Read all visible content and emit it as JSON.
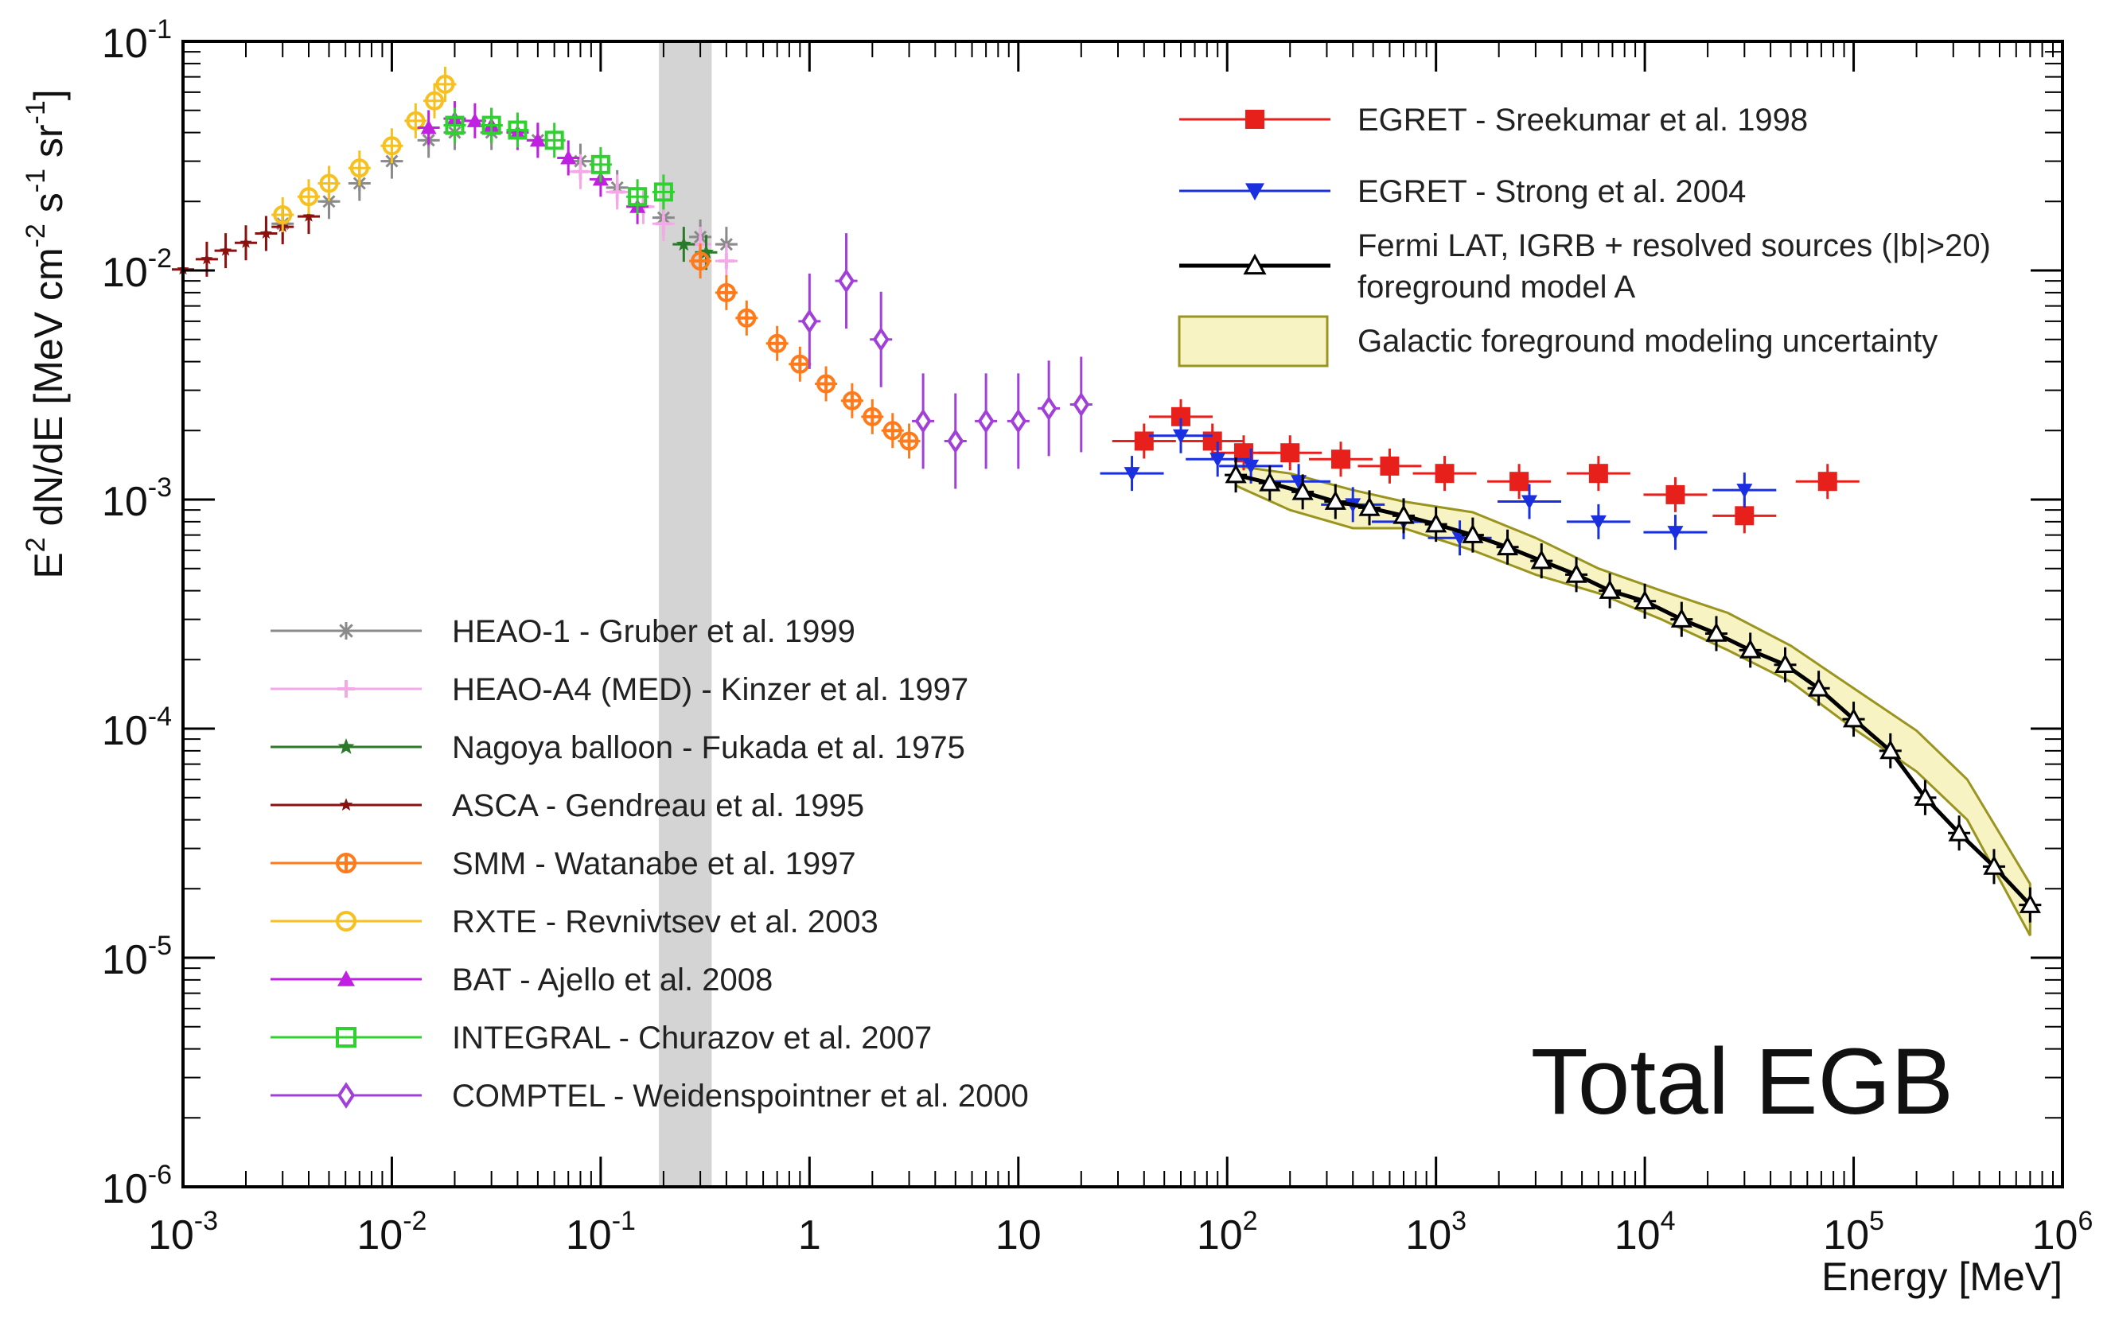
{
  "chart_data": {
    "type": "scatter",
    "title": "",
    "annotation": "Total EGB",
    "xlabel": "Energy [MeV]",
    "ylabel": "E2 dN/dE [MeV cm-2 s-1 sr-1]",
    "xscale": "log",
    "yscale": "log",
    "xlim": [
      0.001,
      1000000
    ],
    "ylim": [
      1e-06,
      0.1
    ],
    "x_tick_labels": [
      "10-3",
      "10-2",
      "10-1",
      "1",
      "10",
      "102",
      "103",
      "104",
      "105",
      "106"
    ],
    "y_tick_labels": [
      "10-6",
      "10-5",
      "10-4",
      "10-3",
      "10-2",
      "10-1"
    ],
    "shaded_band_x": [
      0.19,
      0.34
    ],
    "legend_top_right": [
      "EGRET - Sreekumar et al. 1998",
      "EGRET - Strong et al. 2004",
      "Fermi LAT, IGRB + resolved sources (|b|>20)",
      "foreground model A",
      "Galactic foreground modeling uncertainty"
    ],
    "legend_bottom_left": [
      "HEAO-1 - Gruber et al. 1999",
      "HEAO-A4 (MED) - Kinzer et al. 1997",
      "Nagoya balloon - Fukada et al. 1975",
      "ASCA - Gendreau et al. 1995",
      "SMM - Watanabe et al. 1997",
      "RXTE - Revnivtsev et al. 2003",
      "BAT - Ajello et al. 2008",
      "INTEGRAL - Churazov et al. 2007",
      "COMPTEL - Weidenspointner et al. 2000"
    ],
    "series": [
      {
        "name": "EGRET - Sreekumar et al. 1998",
        "color": "#e8201c",
        "marker": "square",
        "x": [
          40,
          60,
          85,
          120,
          200,
          350,
          600,
          1100,
          2500,
          6000,
          14000,
          30000,
          75000
        ],
        "y": [
          0.0018,
          0.0023,
          0.0018,
          0.0016,
          0.0016,
          0.0015,
          0.0014,
          0.0013,
          0.0012,
          0.0013,
          0.00105,
          0.00085,
          0.0012
        ]
      },
      {
        "name": "EGRET - Strong et al. 2004",
        "color": "#1a2fe0",
        "marker": "triangle-down",
        "x": [
          35,
          60,
          90,
          130,
          220,
          400,
          700,
          1300,
          2800,
          6000,
          14000,
          30000
        ],
        "y": [
          0.0013,
          0.0019,
          0.0015,
          0.0014,
          0.0012,
          0.00095,
          0.0008,
          0.00068,
          0.00098,
          0.0008,
          0.00072,
          0.0011
        ]
      },
      {
        "name": "Fermi LAT, IGRB + resolved sources (|b|>20)",
        "color": "#000000",
        "marker": "triangle-open",
        "x": [
          110,
          160,
          230,
          330,
          480,
          700,
          1000,
          1500,
          2200,
          3200,
          4700,
          6800,
          10000,
          15000,
          22000,
          32000,
          47000,
          68000,
          100000,
          150000,
          220000,
          320000,
          470000,
          700000
        ],
        "y": [
          0.00128,
          0.00118,
          0.00108,
          0.00098,
          0.00092,
          0.00085,
          0.00078,
          0.0007,
          0.00062,
          0.00054,
          0.00047,
          0.0004,
          0.00036,
          0.0003,
          0.00026,
          0.00022,
          0.00019,
          0.00015,
          0.00011,
          8e-05,
          5e-05,
          3.5e-05,
          2.5e-05,
          1.7e-05
        ]
      },
      {
        "name": "HEAO-1 - Gruber et al. 1999",
        "color": "#8a8a8a",
        "marker": "asterisk",
        "x": [
          0.003,
          0.005,
          0.007,
          0.01,
          0.015,
          0.02,
          0.03,
          0.05,
          0.08,
          0.12,
          0.2,
          0.3,
          0.4
        ],
        "y": [
          0.016,
          0.02,
          0.024,
          0.03,
          0.037,
          0.04,
          0.04,
          0.037,
          0.03,
          0.023,
          0.017,
          0.014,
          0.013
        ]
      },
      {
        "name": "HEAO-A4 (MED) - Kinzer et al. 1997",
        "color": "#f5a8e8",
        "marker": "plus",
        "x": [
          0.08,
          0.12,
          0.16,
          0.2,
          0.3,
          0.4
        ],
        "y": [
          0.027,
          0.022,
          0.019,
          0.016,
          0.013,
          0.011
        ]
      },
      {
        "name": "Nagoya balloon - Fukada et al. 1975",
        "color": "#2a7a2a",
        "marker": "star",
        "x": [
          0.25,
          0.32
        ],
        "y": [
          0.013,
          0.012
        ]
      },
      {
        "name": "ASCA - Gendreau et al. 1995",
        "color": "#8b1010",
        "marker": "star-small",
        "x": [
          0.001,
          0.0013,
          0.0016,
          0.002,
          0.0025,
          0.003,
          0.004
        ],
        "y": [
          0.0101,
          0.0112,
          0.0122,
          0.0132,
          0.0145,
          0.0155,
          0.0172
        ]
      },
      {
        "name": "SMM - Watanabe et al. 1997",
        "color": "#ff7a1a",
        "marker": "crossed-circle",
        "x": [
          0.3,
          0.4,
          0.5,
          0.7,
          0.9,
          1.2,
          1.6,
          2.0,
          2.5,
          3.0
        ],
        "y": [
          0.011,
          0.008,
          0.0062,
          0.0048,
          0.0039,
          0.0032,
          0.0027,
          0.0023,
          0.002,
          0.0018
        ]
      },
      {
        "name": "RXTE - Revnivtsev et al. 2003",
        "color": "#f5c020",
        "marker": "circle-open",
        "x": [
          0.003,
          0.004,
          0.005,
          0.007,
          0.01,
          0.013,
          0.016,
          0.018
        ],
        "y": [
          0.0175,
          0.021,
          0.024,
          0.028,
          0.035,
          0.045,
          0.055,
          0.065
        ]
      },
      {
        "name": "BAT - Ajello et al. 2008",
        "color": "#c020e0",
        "marker": "triangle-up",
        "x": [
          0.015,
          0.02,
          0.025,
          0.03,
          0.04,
          0.05,
          0.07,
          0.1,
          0.15
        ],
        "y": [
          0.042,
          0.046,
          0.045,
          0.043,
          0.04,
          0.037,
          0.031,
          0.025,
          0.019
        ]
      },
      {
        "name": "INTEGRAL - Churazov et al. 2007",
        "color": "#30d030",
        "marker": "square-open",
        "x": [
          0.02,
          0.03,
          0.04,
          0.06,
          0.1,
          0.15,
          0.2
        ],
        "y": [
          0.043,
          0.043,
          0.041,
          0.037,
          0.029,
          0.021,
          0.022
        ]
      },
      {
        "name": "COMPTEL - Weidenspointner et al. 2000",
        "color": "#a040d8",
        "marker": "diamond-open",
        "x": [
          1,
          1.5,
          2.2,
          3.5,
          5,
          7,
          10,
          14,
          20
        ],
        "y": [
          0.006,
          0.009,
          0.005,
          0.0022,
          0.0018,
          0.0022,
          0.0022,
          0.0025,
          0.0026
        ]
      }
    ],
    "uncertainty_band": {
      "name": "Galactic foreground modeling uncertainty",
      "color": "#f7f3c2",
      "x": [
        110,
        200,
        400,
        700,
        1500,
        3000,
        6000,
        12000,
        25000,
        50000,
        100000,
        200000,
        350000,
        700000
      ],
      "y_low": [
        0.00115,
        0.0009,
        0.00075,
        0.00075,
        0.0006,
        0.00047,
        0.00039,
        0.0003,
        0.00022,
        0.00016,
        0.0001,
        6.5e-05,
        4e-05,
        1.25e-05
      ],
      "y_high": [
        0.0014,
        0.0013,
        0.0011,
        0.00098,
        0.00088,
        0.00068,
        0.0005,
        0.0004,
        0.00032,
        0.00023,
        0.00015,
        9.8e-05,
        6e-05,
        2.1e-05
      ]
    }
  }
}
